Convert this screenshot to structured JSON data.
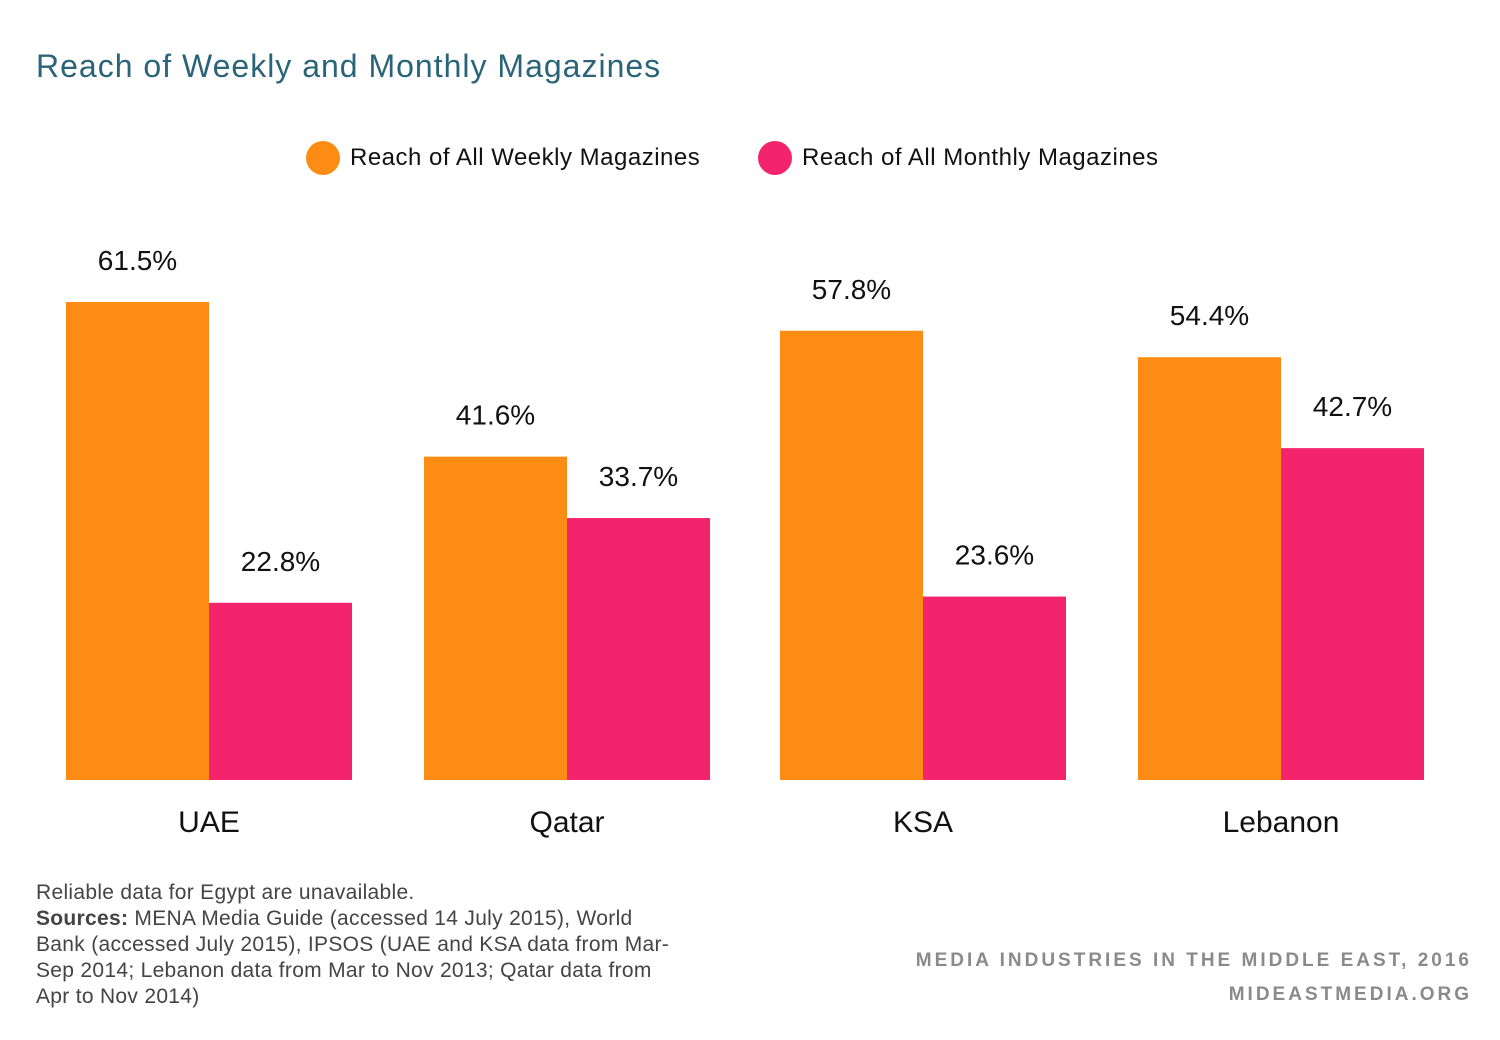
{
  "title": "Reach of Weekly and Monthly Magazines",
  "chart_data": {
    "type": "bar",
    "title": "Reach of Weekly and Monthly Magazines",
    "categories": [
      "UAE",
      "Qatar",
      "KSA",
      "Lebanon"
    ],
    "series": [
      {
        "name": "Reach of All Weekly Magazines",
        "color": "#fd8c14",
        "values": [
          61.5,
          41.6,
          57.8,
          54.4
        ],
        "labels": [
          "61.5%",
          "41.6%",
          "57.8%",
          "54.4%"
        ]
      },
      {
        "name": "Reach of All Monthly Magazines",
        "color": "#f4246c",
        "values": [
          22.8,
          33.7,
          23.6,
          42.7
        ],
        "labels": [
          "22.8%",
          "33.7%",
          "23.6%",
          "42.7%"
        ]
      }
    ],
    "unit": "%",
    "ylim": [
      0,
      61.5
    ],
    "grid": false,
    "legend": "top"
  },
  "footnote": {
    "line1": "Reliable data for Egypt are unavailable.",
    "sources_label": "Sources:",
    "sources_text": "MENA Media Guide (accessed 14 July 2015), World Bank (accessed July 2015), IPSOS (UAE and KSA data from Mar-Sep 2014; Lebanon data from Mar to Nov 2013; Qatar data from Apr to Nov 2014)"
  },
  "brand": {
    "line1": "MEDIA INDUSTRIES IN THE MIDDLE EAST, 2016",
    "line2": "MIDEASTMEDIA.ORG"
  }
}
